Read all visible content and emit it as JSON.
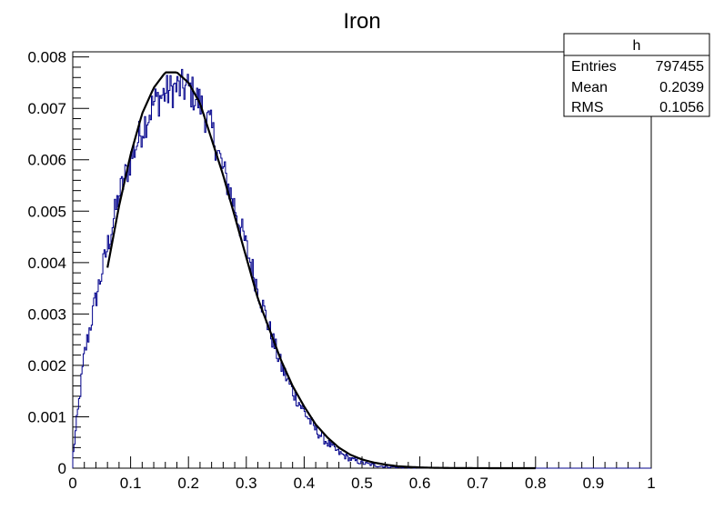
{
  "chart_data": {
    "type": "histogram",
    "title": "Iron",
    "xlabel": "",
    "ylabel": "",
    "xlim": [
      0,
      1
    ],
    "ylim": [
      0,
      0.0081
    ],
    "x_ticks": [
      "0",
      "0.1",
      "0.2",
      "0.3",
      "0.4",
      "0.5",
      "0.6",
      "0.7",
      "0.8",
      "0.9",
      "1"
    ],
    "y_ticks": [
      "0",
      "0.001",
      "0.002",
      "0.003",
      "0.004",
      "0.005",
      "0.006",
      "0.007",
      "0.008"
    ],
    "grid": false,
    "stats_box": {
      "name": "h",
      "rows": [
        {
          "label": "Entries",
          "value": "797455"
        },
        {
          "label": "Mean",
          "value": "0.2039"
        },
        {
          "label": "RMS",
          "value": "0.1056"
        }
      ]
    },
    "series": [
      {
        "kind": "histogram",
        "color": "#00008b",
        "bins": 500,
        "x": [
          0,
          0.02,
          0.04,
          0.06,
          0.08,
          0.1,
          0.12,
          0.14,
          0.16,
          0.18,
          0.2,
          0.22,
          0.24,
          0.26,
          0.28,
          0.3,
          0.32,
          0.34,
          0.36,
          0.38,
          0.4,
          0.42,
          0.44,
          0.46,
          0.48,
          0.5,
          0.52,
          0.54,
          0.56,
          0.58,
          0.6,
          0.62,
          0.64,
          0.66,
          0.68,
          0.7
        ],
        "values": [
          0.0002,
          0.0022,
          0.0033,
          0.0043,
          0.0053,
          0.006,
          0.0066,
          0.0071,
          0.0073,
          0.0074,
          0.0074,
          0.0071,
          0.0066,
          0.0058,
          0.0051,
          0.0043,
          0.0035,
          0.0027,
          0.002,
          0.0015,
          0.0011,
          0.00075,
          0.0005,
          0.0003,
          0.00018,
          0.0001,
          6e-05,
          3e-05,
          2e-05,
          1e-05,
          5e-06,
          3e-06,
          2e-06,
          1e-06,
          0,
          0
        ]
      },
      {
        "kind": "fit",
        "color": "#000000",
        "x": [
          0.06,
          0.08,
          0.1,
          0.12,
          0.14,
          0.16,
          0.18,
          0.2,
          0.22,
          0.24,
          0.26,
          0.28,
          0.3,
          0.32,
          0.34,
          0.36,
          0.38,
          0.4,
          0.42,
          0.44,
          0.46,
          0.48,
          0.5,
          0.52,
          0.54,
          0.56,
          0.58,
          0.6,
          0.62,
          0.64,
          0.66,
          0.68,
          0.7,
          0.75,
          0.8
        ],
        "values": [
          0.0039,
          0.0051,
          0.0061,
          0.0069,
          0.0074,
          0.0077,
          0.0077,
          0.0075,
          0.0071,
          0.0064,
          0.0057,
          0.0049,
          0.0041,
          0.0033,
          0.0027,
          0.0021,
          0.0016,
          0.0012,
          0.00085,
          0.0006,
          0.0004,
          0.00026,
          0.00017,
          0.00011,
          7e-05,
          4e-05,
          2.5e-05,
          1.5e-05,
          8e-06,
          5e-06,
          3e-06,
          2e-06,
          1e-06,
          0,
          0
        ]
      }
    ]
  }
}
